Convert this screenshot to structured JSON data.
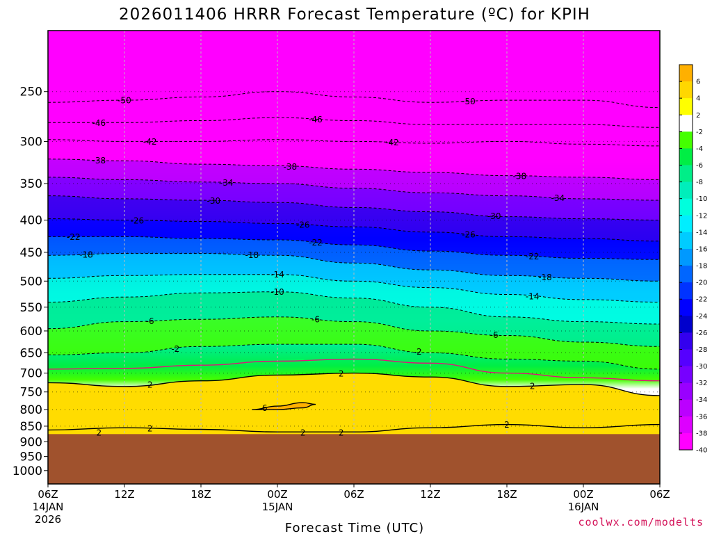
{
  "chart_data": {
    "type": "heatmap",
    "title": "2026011406 HRRR Forecast Temperature (ºC) for KPIH",
    "xlabel": "Forecast Time (UTC)",
    "ylabel": "",
    "source": "coolwx.com/modelts",
    "x_range_hours": [
      0,
      48
    ],
    "y_range_hpa": [
      200,
      1050
    ],
    "y_scale": "log-pressure",
    "y_ticks": [
      "250",
      "300",
      "350",
      "400",
      "450",
      "500",
      "550",
      "600",
      "650",
      "700",
      "750",
      "800",
      "850",
      "900",
      "950",
      "1000"
    ],
    "y_tick_values": [
      250,
      300,
      350,
      400,
      450,
      500,
      550,
      600,
      650,
      700,
      750,
      800,
      850,
      900,
      950,
      1000
    ],
    "x_ticks": [
      {
        "hour": 0,
        "label": "06Z",
        "date": "14JAN",
        "year": "2026"
      },
      {
        "hour": 6,
        "label": "12Z"
      },
      {
        "hour": 12,
        "label": "18Z"
      },
      {
        "hour": 18,
        "label": "00Z",
        "date": "15JAN"
      },
      {
        "hour": 24,
        "label": "06Z"
      },
      {
        "hour": 30,
        "label": "12Z"
      },
      {
        "hour": 36,
        "label": "18Z"
      },
      {
        "hour": 42,
        "label": "00Z",
        "date": "16JAN"
      },
      {
        "hour": 48,
        "label": "06Z"
      }
    ],
    "grid": true,
    "legend": "right",
    "ground_color": "#a0522d",
    "ground_level_hpa": 875,
    "colorbar": {
      "labels": [
        "6",
        "4",
        "2",
        "-2",
        "-4",
        "-6",
        "-8",
        "-10",
        "-12",
        "-14",
        "-16",
        "-18",
        "-20",
        "-22",
        "-24",
        "-26",
        "-28",
        "-30",
        "-32",
        "-34",
        "-36",
        "-38",
        "-40"
      ],
      "colors": [
        "#ffb000",
        "#ffd700",
        "#ffff00",
        "#ffffff",
        "#44ff00",
        "#00ee44",
        "#00ee88",
        "#00eebb",
        "#00ffdd",
        "#00eeff",
        "#00ccff",
        "#0099ff",
        "#0066ff",
        "#0033ff",
        "#0000ff",
        "#0000cc",
        "#3300ee",
        "#5500ff",
        "#7700ff",
        "#9900ff",
        "#bb00ff",
        "#dd00ff",
        "#ff00ff"
      ]
    },
    "isotherms": [
      {
        "temp": -50,
        "hours": [
          0,
          6,
          12,
          18,
          24,
          30,
          36,
          42,
          48
        ],
        "p": [
          260,
          258,
          255,
          250,
          255,
          260,
          258,
          258,
          265
        ],
        "label_hours": [
          6,
          33
        ]
      },
      {
        "temp": -46,
        "hours": [
          0,
          6,
          12,
          18,
          24,
          30,
          36,
          42,
          48
        ],
        "p": [
          280,
          280,
          278,
          275,
          278,
          282,
          282,
          282,
          285
        ],
        "label_hours": [
          4,
          21
        ]
      },
      {
        "temp": -42,
        "hours": [
          0,
          6,
          12,
          18,
          24,
          30,
          36,
          42,
          48
        ],
        "p": [
          298,
          300,
          300,
          298,
          300,
          302,
          300,
          303,
          305
        ],
        "label_hours": [
          8,
          27
        ]
      },
      {
        "temp": -38,
        "hours": [
          0,
          6,
          12,
          18,
          24,
          30,
          36,
          42,
          48
        ],
        "p": [
          320,
          322,
          326,
          328,
          332,
          336,
          340,
          342,
          345
        ],
        "label_hours": [
          4,
          19,
          37
        ]
      },
      {
        "temp": -34,
        "hours": [
          0,
          6,
          12,
          18,
          24,
          30,
          36,
          42,
          48
        ],
        "p": [
          342,
          345,
          348,
          350,
          356,
          362,
          366,
          370,
          372
        ],
        "label_hours": [
          14,
          40
        ]
      },
      {
        "temp": -30,
        "hours": [
          0,
          6,
          12,
          18,
          24,
          30,
          36,
          42,
          48
        ],
        "p": [
          366,
          370,
          372,
          375,
          382,
          388,
          395,
          398,
          400
        ],
        "label_hours": [
          13,
          35
        ]
      },
      {
        "temp": -26,
        "hours": [
          0,
          6,
          12,
          18,
          24,
          30,
          36,
          42,
          48
        ],
        "p": [
          398,
          400,
          402,
          405,
          410,
          418,
          425,
          428,
          432
        ],
        "label_hours": [
          7,
          20,
          33
        ]
      },
      {
        "temp": -22,
        "hours": [
          0,
          6,
          12,
          18,
          24,
          30,
          36,
          42,
          48
        ],
        "p": [
          425,
          425,
          428,
          430,
          438,
          448,
          455,
          460,
          462
        ],
        "label_hours": [
          2,
          21,
          38
        ]
      },
      {
        "temp": -18,
        "hours": [
          0,
          6,
          12,
          18,
          24,
          30,
          36,
          42,
          48
        ],
        "p": [
          455,
          452,
          452,
          455,
          468,
          480,
          490,
          495,
          500
        ],
        "label_hours": [
          3,
          16,
          39
        ]
      },
      {
        "temp": -14,
        "hours": [
          0,
          6,
          12,
          18,
          24,
          30,
          36,
          42,
          48
        ],
        "p": [
          495,
          490,
          488,
          488,
          500,
          512,
          525,
          535,
          540
        ],
        "label_hours": [
          18,
          38
        ]
      },
      {
        "temp": -10,
        "hours": [
          0,
          6,
          12,
          18,
          24,
          30,
          36,
          42,
          48
        ],
        "p": [
          540,
          530,
          522,
          520,
          532,
          550,
          570,
          580,
          585
        ],
        "label_hours": [
          18
        ]
      },
      {
        "temp": -6,
        "hours": [
          0,
          6,
          12,
          18,
          24,
          30,
          36,
          42,
          48
        ],
        "p": [
          595,
          580,
          575,
          570,
          580,
          600,
          610,
          625,
          635
        ],
        "label_hours": [
          8,
          21,
          35
        ]
      },
      {
        "temp": -2,
        "hours": [
          0,
          6,
          12,
          18,
          24,
          30,
          36,
          42,
          48
        ],
        "p": [
          655,
          650,
          635,
          630,
          630,
          650,
          665,
          670,
          690
        ],
        "label_hours": [
          10,
          29
        ]
      },
      {
        "temp": 2,
        "hours": [
          0,
          6,
          12,
          18,
          24,
          30,
          36,
          42,
          48
        ],
        "p": [
          725,
          735,
          720,
          705,
          700,
          710,
          735,
          730,
          760
        ],
        "label_hours": [
          8,
          23,
          38
        ]
      },
      {
        "temp": 2,
        "hours": [
          0,
          6,
          12,
          18,
          24,
          30,
          36,
          42,
          48
        ],
        "p": [
          862,
          855,
          860,
          868,
          868,
          855,
          845,
          855,
          845
        ],
        "label_hours": [
          8,
          36
        ]
      },
      {
        "temp": 6,
        "hours": [
          16,
          18,
          20,
          21,
          20,
          18,
          16
        ],
        "p": [
          800,
          790,
          780,
          785,
          795,
          800,
          800
        ],
        "label_hours": [
          17
        ]
      }
    ],
    "ground_isotherm_labels": [
      {
        "hour": 4,
        "temp": 2
      },
      {
        "hour": 20,
        "temp": 2
      },
      {
        "hour": 23,
        "temp": 2
      }
    ],
    "zero_isotherm": {
      "hours": [
        0,
        6,
        12,
        18,
        24,
        30,
        36,
        42,
        48
      ],
      "p": [
        690,
        688,
        680,
        670,
        665,
        675,
        700,
        712,
        720
      ]
    },
    "contour_labels": [
      "-50",
      "-46",
      "-42",
      "-38",
      "-34",
      "-30",
      "-26",
      "-22",
      "-18",
      "-14",
      "-10",
      "-6",
      "-2",
      "2",
      "6"
    ]
  }
}
